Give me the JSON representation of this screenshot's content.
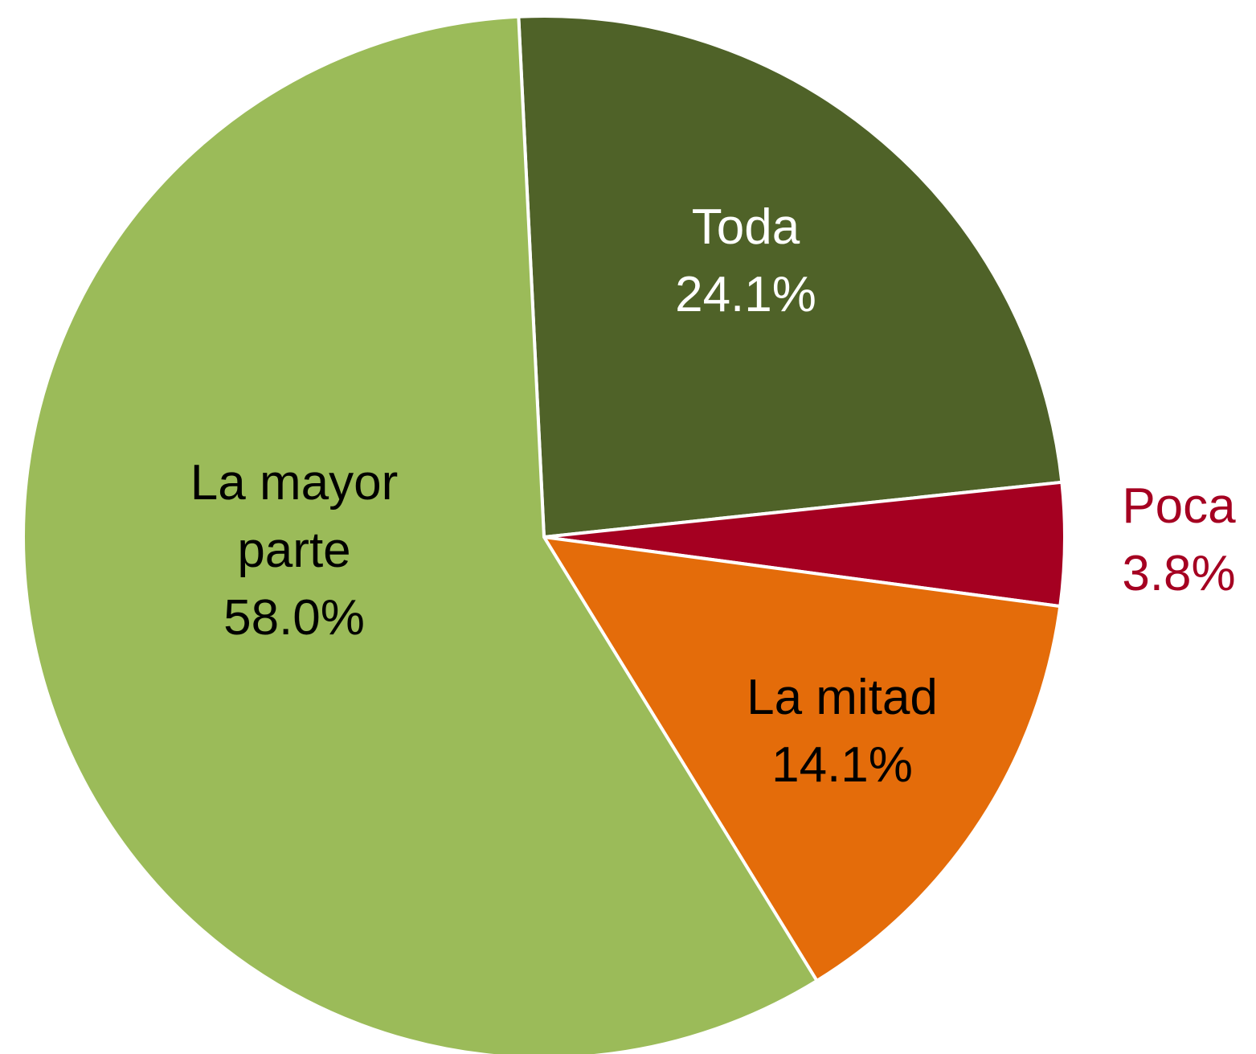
{
  "chart_data": {
    "type": "pie",
    "categories": [
      "Toda",
      "Poca",
      "La mitad",
      "La mayor parte"
    ],
    "values": [
      24.1,
      3.8,
      14.1,
      58.0
    ],
    "value_labels": [
      "24.1%",
      "3.8%",
      "14.1%",
      "58.0%"
    ],
    "colors": [
      "#4f6228",
      "#a50021",
      "#e46c0a",
      "#9bbb59"
    ],
    "label_colors": [
      "#ffffff",
      "#a50021",
      "#000000",
      "#000000"
    ]
  }
}
